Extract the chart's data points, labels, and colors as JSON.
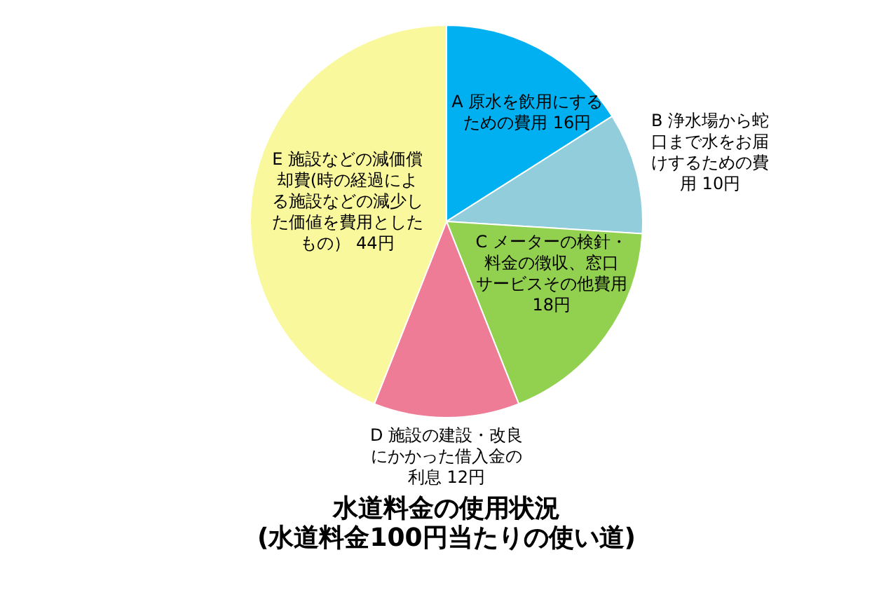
{
  "chart_data": {
    "type": "pie",
    "title": "水道料金の使用状況",
    "subtitle": "(水道料金100円当たりの使い道)",
    "categories": [
      "A 原水を飲用にするための費用",
      "B 浄水場から蛇口まで水をお届けするための費用",
      "C メーターの検針・料金の徴収、窓口サービスその他費用",
      "D 施設の建設・改良にかかった借入金の利息",
      "E 施設などの減価償却費(時の経過による施設などの減少した価値を費用としたもの）"
    ],
    "values": [
      16,
      10,
      18,
      12,
      44
    ],
    "value_labels": [
      "16円",
      "10円",
      "18円",
      "12円",
      "44円"
    ],
    "colors": [
      "#00b0f0",
      "#92cddc",
      "#92d050",
      "#ef7c96",
      "#faf89c"
    ]
  }
}
